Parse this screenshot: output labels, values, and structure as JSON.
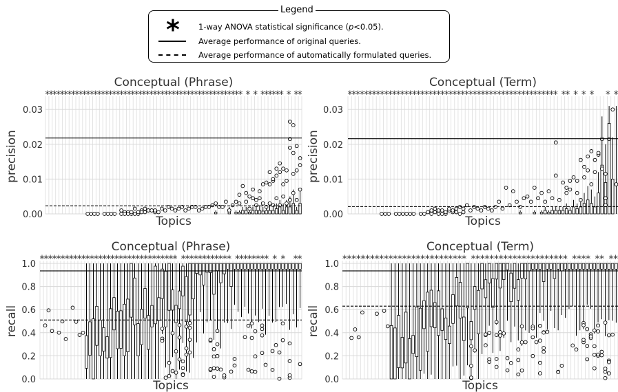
{
  "legend": {
    "title": "Legend",
    "items": [
      {
        "symbol": "*",
        "text_pre": "1-way ANOVA statistical significance (",
        "text_italic": "p",
        "text_post": "<0.05)."
      },
      {
        "symbol": "solid-line",
        "text": "Average performance of original queries."
      },
      {
        "symbol": "dashed-line",
        "text": "Average performance of automatically formulated queries."
      }
    ]
  },
  "chart_data": [
    {
      "type": "box",
      "title": "Conceptual (Phrase)",
      "xlabel": "Topics",
      "ylabel": "precision",
      "ylim": [
        0,
        0.033
      ],
      "yticks": [
        "0.00",
        "0.01",
        "0.02",
        "0.03"
      ],
      "ytick_values": [
        0,
        0.01,
        0.02,
        0.03
      ],
      "n_topics": 76,
      "baseline_original": 0.0218,
      "baseline_automatic": 0.0023,
      "significance_markers": "***************************************************** * * ****** * **",
      "medians": [
        0,
        0,
        0,
        0,
        0,
        0,
        0,
        0,
        0,
        0,
        0,
        0,
        0,
        0,
        0,
        0,
        0,
        0,
        0,
        0,
        0,
        0,
        0,
        0,
        0,
        0,
        0,
        0,
        0,
        0,
        0,
        0,
        0,
        0,
        0,
        0,
        0,
        0,
        0,
        0,
        0,
        0,
        0,
        0,
        0,
        0,
        0,
        0,
        0,
        0,
        0,
        0,
        0,
        0,
        0,
        0,
        0,
        0,
        0,
        0,
        0,
        0,
        0,
        0,
        0,
        0,
        0,
        0,
        0,
        0.0005,
        0,
        0,
        0,
        0.0005,
        0,
        0
      ],
      "q3": [
        0,
        0,
        0,
        0,
        0,
        0,
        0,
        0,
        0,
        0,
        0,
        0,
        0,
        0,
        0,
        0,
        0,
        0,
        0,
        0,
        0,
        0,
        0,
        0,
        0,
        0,
        0,
        0,
        0,
        0,
        0,
        0,
        0,
        0,
        0,
        0,
        0,
        0,
        0,
        0,
        0,
        0,
        0,
        0,
        0,
        0,
        0,
        0,
        0,
        0,
        0.0005,
        0,
        0,
        0,
        0.001,
        0,
        0.0005,
        0.0005,
        0.001,
        0.001,
        0.0005,
        0.001,
        0.001,
        0.001,
        0.0008,
        0.001,
        0.001,
        0.001,
        0.0015,
        0.002,
        0.001,
        0.002,
        0.002,
        0.003,
        0.001,
        0.003
      ],
      "whisker_high": [
        0,
        0,
        0,
        0,
        0,
        0,
        0,
        0,
        0,
        0,
        0,
        0,
        0,
        0,
        0,
        0,
        0,
        0,
        0,
        0,
        0,
        0,
        0,
        0,
        0,
        0,
        0,
        0,
        0,
        0,
        0,
        0,
        0,
        0,
        0,
        0,
        0,
        0,
        0,
        0,
        0,
        0,
        0,
        0,
        0,
        0,
        0,
        0,
        0,
        0,
        0.001,
        0,
        0,
        0,
        0.002,
        0,
        0.001,
        0.001,
        0.002,
        0.002,
        0.001,
        0.002,
        0.0025,
        0.0025,
        0.002,
        0.0025,
        0.0025,
        0.0025,
        0.003,
        0.004,
        0.003,
        0.004,
        0.005,
        0.007,
        0.002,
        0.007
      ],
      "outliers": [
        [
          13,
          0
        ],
        [
          14,
          0
        ],
        [
          15,
          0
        ],
        [
          16,
          0
        ],
        [
          18,
          0
        ],
        [
          19,
          0
        ],
        [
          20,
          0
        ],
        [
          21,
          0
        ],
        [
          23,
          0.001
        ],
        [
          24,
          0.0005
        ],
        [
          25,
          0.0005
        ],
        [
          26,
          0
        ],
        [
          27,
          0
        ],
        [
          28,
          0
        ],
        [
          29,
          0.001
        ],
        [
          30,
          0.0005
        ],
        [
          31,
          0.001
        ],
        [
          32,
          0.001
        ],
        [
          23,
          0
        ],
        [
          24,
          0
        ],
        [
          25,
          0
        ],
        [
          26,
          0.0005
        ],
        [
          27,
          0.0015
        ],
        [
          28,
          0.0005
        ],
        [
          29,
          0.0005
        ],
        [
          30,
          0.0015
        ],
        [
          31,
          0.001
        ],
        [
          32,
          0.001
        ],
        [
          33,
          0.0005
        ],
        [
          33,
          0.001
        ],
        [
          34,
          0.0005
        ],
        [
          35,
          0.0015
        ],
        [
          36,
          0.001
        ],
        [
          37,
          0.002
        ],
        [
          38,
          0.0015
        ],
        [
          39,
          0.001
        ],
        [
          40,
          0.0015
        ],
        [
          41,
          0.002
        ],
        [
          42,
          0.001
        ],
        [
          43,
          0.0015
        ],
        [
          44,
          0.002
        ],
        [
          45,
          0.002
        ],
        [
          46,
          0.001
        ],
        [
          47,
          0.0015
        ],
        [
          48,
          0.002
        ],
        [
          49,
          0.002
        ],
        [
          50,
          0.0025
        ],
        [
          51,
          0.003
        ],
        [
          52,
          0.002
        ],
        [
          53,
          0.002
        ],
        [
          54,
          0.0035
        ],
        [
          55,
          0.001
        ],
        [
          56,
          0.0025
        ],
        [
          57,
          0.0035
        ],
        [
          58,
          0.003
        ],
        [
          59,
          0.008
        ],
        [
          60,
          0.006
        ],
        [
          61,
          0.005
        ],
        [
          62,
          0.007
        ],
        [
          63,
          0.004
        ],
        [
          64,
          0.0045
        ],
        [
          65,
          0.003
        ],
        [
          66,
          0.009
        ],
        [
          67,
          0.0085
        ],
        [
          68,
          0.0095
        ],
        [
          69,
          0.011
        ],
        [
          70,
          0.012
        ],
        [
          71,
          0.013
        ],
        [
          72,
          0.0125
        ],
        [
          73,
          0.019
        ],
        [
          74,
          0.0115
        ],
        [
          75,
          0.0125
        ],
        [
          76,
          0.014
        ],
        [
          66,
          0.002
        ],
        [
          67,
          0.003
        ],
        [
          68,
          0.0025
        ],
        [
          69,
          0.0045
        ],
        [
          70,
          0.0025
        ],
        [
          71,
          0.005
        ],
        [
          72,
          0.003
        ],
        [
          73,
          0.004
        ],
        [
          74,
          0.006
        ],
        [
          75,
          0.004
        ],
        [
          76,
          0.007
        ],
        [
          58,
          0.0055
        ],
        [
          60,
          0.0035
        ],
        [
          61,
          0.0015
        ],
        [
          62,
          0.0045
        ],
        [
          63,
          0.0025
        ],
        [
          64,
          0.0065
        ],
        [
          65,
          0.0085
        ],
        [
          67,
          0.012
        ],
        [
          68,
          0.01
        ],
        [
          69,
          0.013
        ],
        [
          70,
          0.0145
        ],
        [
          71,
          0.0085
        ],
        [
          72,
          0.0095
        ],
        [
          73,
          0.0265
        ],
        [
          74,
          0.0255
        ],
        [
          75,
          0.0195
        ],
        [
          76,
          0.016
        ],
        [
          73,
          0.0215
        ],
        [
          74,
          0.0175
        ]
      ]
    },
    {
      "type": "box",
      "title": "Conceptual (Term)",
      "xlabel": "Topics",
      "ylabel": "precision",
      "ylim": [
        0,
        0.033
      ],
      "yticks": [
        "0.00",
        "0.01",
        "0.02",
        "0.03"
      ],
      "ytick_values": [
        0,
        0.01,
        0.02,
        0.03
      ],
      "n_topics": 76,
      "baseline_original": 0.0216,
      "baseline_automatic": 0.0021,
      "significance_markers": "**************************************************** ** * * *   * *",
      "medians": [
        0,
        0,
        0,
        0,
        0,
        0,
        0,
        0,
        0,
        0,
        0,
        0,
        0,
        0,
        0,
        0,
        0,
        0,
        0,
        0,
        0,
        0,
        0,
        0,
        0,
        0,
        0,
        0,
        0,
        0,
        0,
        0,
        0,
        0,
        0,
        0,
        0,
        0,
        0,
        0,
        0,
        0,
        0,
        0,
        0,
        0,
        0,
        0,
        0,
        0,
        0,
        0,
        0,
        0,
        0,
        0,
        0,
        0,
        0,
        0,
        0,
        0,
        0,
        0,
        0,
        0,
        0,
        0,
        0.001,
        0,
        0.001,
        0.002,
        0.001,
        0.005,
        0.002,
        0
      ],
      "q3": [
        0,
        0,
        0,
        0,
        0,
        0,
        0,
        0,
        0,
        0,
        0,
        0,
        0,
        0,
        0,
        0,
        0,
        0,
        0,
        0,
        0,
        0,
        0,
        0,
        0,
        0,
        0,
        0,
        0,
        0,
        0,
        0,
        0,
        0,
        0,
        0,
        0,
        0,
        0,
        0,
        0,
        0,
        0,
        0,
        0,
        0,
        0,
        0,
        0.0005,
        0,
        0,
        0,
        0.0005,
        0,
        0.0005,
        0.001,
        0.0005,
        0.001,
        0.001,
        0.001,
        0.001,
        0.0015,
        0.001,
        0.002,
        0.0015,
        0.002,
        0.003,
        0.004,
        0.003,
        0.002,
        0.006,
        0.014,
        0.009,
        0.026,
        0.01,
        0
      ],
      "whisker_high": [
        0,
        0,
        0,
        0,
        0,
        0,
        0,
        0,
        0,
        0,
        0,
        0,
        0,
        0,
        0,
        0,
        0,
        0,
        0,
        0,
        0,
        0,
        0,
        0,
        0,
        0,
        0,
        0,
        0,
        0,
        0,
        0,
        0,
        0,
        0,
        0,
        0,
        0,
        0,
        0,
        0,
        0,
        0,
        0,
        0,
        0,
        0,
        0,
        0.001,
        0,
        0,
        0,
        0.001,
        0,
        0.001,
        0.002,
        0.001,
        0.002,
        0.002,
        0.002,
        0.002,
        0.003,
        0.002,
        0.004,
        0.003,
        0.004,
        0.006,
        0.008,
        0.007,
        0.005,
        0.012,
        0.028,
        0.02,
        0.031,
        0.022,
        0.031
      ],
      "outliers": [
        [
          10,
          0
        ],
        [
          11,
          0
        ],
        [
          12,
          0
        ],
        [
          14,
          0
        ],
        [
          15,
          0
        ],
        [
          16,
          0
        ],
        [
          17,
          0
        ],
        [
          18,
          0
        ],
        [
          19,
          0
        ],
        [
          21,
          0
        ],
        [
          22,
          0
        ],
        [
          23,
          0.0005
        ],
        [
          24,
          0
        ],
        [
          25,
          0.0005
        ],
        [
          26,
          0
        ],
        [
          27,
          0
        ],
        [
          28,
          0
        ],
        [
          29,
          0.001
        ],
        [
          30,
          0.0005
        ],
        [
          31,
          0.0005
        ],
        [
          32,
          0
        ],
        [
          33,
          0.0005
        ],
        [
          24,
          0.001
        ],
        [
          25,
          0.0015
        ],
        [
          26,
          0.001
        ],
        [
          27,
          0.001
        ],
        [
          28,
          0.0005
        ],
        [
          29,
          0.0015
        ],
        [
          30,
          0.001
        ],
        [
          31,
          0.0015
        ],
        [
          32,
          0.002
        ],
        [
          33,
          0.0015
        ],
        [
          34,
          0.0025
        ],
        [
          35,
          0.001
        ],
        [
          36,
          0.002
        ],
        [
          37,
          0.0015
        ],
        [
          38,
          0.001
        ],
        [
          39,
          0.002
        ],
        [
          40,
          0.0015
        ],
        [
          41,
          0.001
        ],
        [
          42,
          0.002
        ],
        [
          43,
          0.0035
        ],
        [
          44,
          0.0015
        ],
        [
          45,
          0.0075
        ],
        [
          46,
          0.0025
        ],
        [
          47,
          0.0065
        ],
        [
          48,
          0.0035
        ],
        [
          49,
          0.002
        ],
        [
          50,
          0.0045
        ],
        [
          51,
          0.005
        ],
        [
          52,
          0.0035
        ],
        [
          53,
          0.0075
        ],
        [
          54,
          0.0045
        ],
        [
          55,
          0.006
        ],
        [
          56,
          0.0035
        ],
        [
          57,
          0.0065
        ],
        [
          58,
          0.0045
        ],
        [
          59,
          0.011
        ],
        [
          60,
          0.004
        ],
        [
          61,
          0.009
        ],
        [
          62,
          0.006
        ],
        [
          63,
          0.007
        ],
        [
          64,
          0.0105
        ],
        [
          65,
          0.006
        ],
        [
          66,
          0.004
        ],
        [
          67,
          0.0105
        ],
        [
          68,
          0.0125
        ],
        [
          69,
          0.0085
        ],
        [
          70,
          0.012
        ],
        [
          71,
          0.017
        ],
        [
          72,
          0.013
        ],
        [
          73,
          0.0115
        ],
        [
          74,
          0.0215
        ],
        [
          75,
          0.03
        ],
        [
          76,
          0.0085
        ],
        [
          59,
          0.0205
        ],
        [
          62,
          0.0075
        ],
        [
          63,
          0.0095
        ],
        [
          65,
          0.0095
        ],
        [
          66,
          0.0155
        ],
        [
          67,
          0.0135
        ],
        [
          68,
          0.0165
        ],
        [
          69,
          0.018
        ],
        [
          70,
          0.0155
        ],
        [
          71,
          0.0175
        ],
        [
          72,
          0.0215
        ],
        [
          73,
          0.0045
        ],
        [
          73,
          0.0025
        ]
      ]
    },
    {
      "type": "box",
      "title": "Conceptual (Phrase)",
      "xlabel": "Topics",
      "ylabel": "recall",
      "ylim": [
        0,
        1.0
      ],
      "yticks": [
        "0.0",
        "0.2",
        "0.4",
        "0.6",
        "0.8",
        "1.0"
      ],
      "ytick_values": [
        0,
        0.2,
        0.4,
        0.6,
        0.8,
        1.0
      ],
      "n_topics": 76,
      "baseline_original": 0.935,
      "baseline_automatic": 0.51,
      "significance_markers": "********************************* ************ ******** * *  **"
    },
    {
      "type": "box",
      "title": "Conceptual (Term)",
      "xlabel": "Topics",
      "ylabel": "recall",
      "ylim": [
        0,
        1.0
      ],
      "yticks": [
        "0.0",
        "0.2",
        "0.4",
        "0.6",
        "0.8",
        "1.0"
      ],
      "ytick_values": [
        0,
        0.2,
        0.4,
        0.6,
        0.8,
        1.0
      ],
      "n_topics": 76,
      "baseline_original": 0.935,
      "baseline_automatic": 0.63,
      "significance_markers": "*************************** ********************* **** ** **"
    }
  ]
}
